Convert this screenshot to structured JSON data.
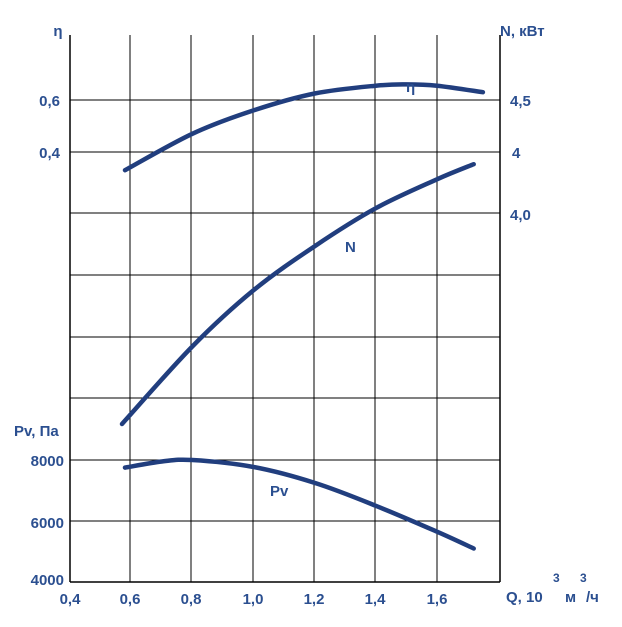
{
  "chart_data": {
    "type": "line",
    "colors": {
      "curve": "#213e7e",
      "text": "#2b4f90",
      "grid": "#000000"
    },
    "x_axis": {
      "ticks": [
        "0,4",
        "0,6",
        "0,8",
        "1,0",
        "1,2",
        "1,4",
        "1,6"
      ],
      "label": {
        "main": "Q, 10",
        "exp": "3",
        "unit": "м",
        "unit_exp": "3",
        "tail": "/ч"
      },
      "range": [
        0.4,
        1.8
      ]
    },
    "eta_axis": {
      "label": "η",
      "ticks": [
        "0,6",
        "0,4"
      ]
    },
    "n_axis": {
      "label": "N, кВт",
      "ticks": [
        "4,5",
        "4",
        "4,0"
      ]
    },
    "pv_axis": {
      "label": "Pv, Па",
      "ticks": [
        "8000",
        "6000",
        "4000"
      ],
      "range": [
        4000,
        8000
      ]
    },
    "grid": true,
    "series": [
      {
        "name": "η",
        "points": [
          [
            0.58,
            0.33
          ],
          [
            0.8,
            0.47
          ],
          [
            1.0,
            0.56
          ],
          [
            1.2,
            0.625
          ],
          [
            1.4,
            0.655
          ],
          [
            1.5,
            0.66
          ],
          [
            1.6,
            0.655
          ],
          [
            1.75,
            0.63
          ]
        ]
      },
      {
        "name": "N",
        "points": [
          [
            0.57,
            5.2
          ],
          [
            0.8,
            7.75
          ],
          [
            1.0,
            9.6
          ],
          [
            1.2,
            11.05
          ],
          [
            1.4,
            12.3
          ],
          [
            1.6,
            13.25
          ],
          [
            1.72,
            13.75
          ]
        ]
      },
      {
        "name": "Pv",
        "points": [
          [
            0.58,
            7750
          ],
          [
            0.7,
            7950
          ],
          [
            0.8,
            8000
          ],
          [
            1.0,
            7770
          ],
          [
            1.2,
            7250
          ],
          [
            1.4,
            6500
          ],
          [
            1.6,
            5650
          ],
          [
            1.72,
            5100
          ]
        ]
      }
    ]
  }
}
